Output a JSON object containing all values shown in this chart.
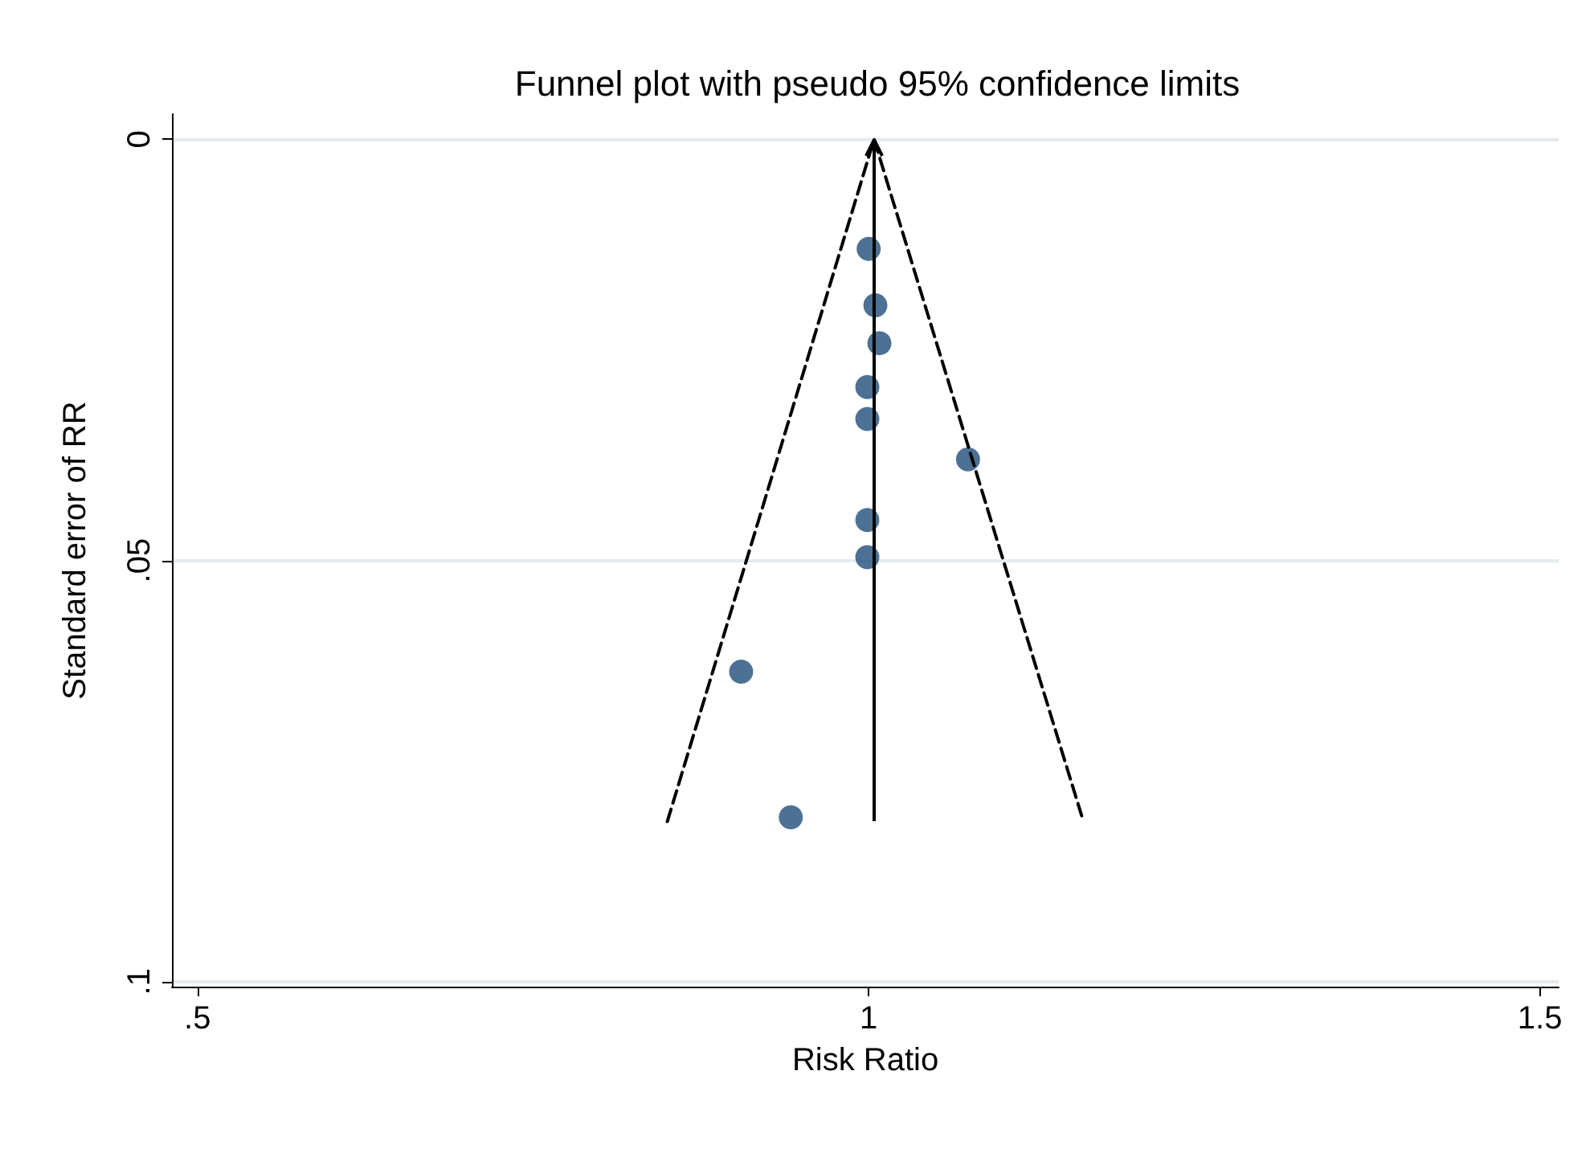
{
  "chart_data": {
    "type": "scatter",
    "title": "Funnel plot with pseudo 95% confidence limits",
    "xlabel": "Risk Ratio",
    "ylabel": "Standard error of RR",
    "xlim": [
      0.481,
      1.514
    ],
    "xticks": [
      {
        "value": 0.5,
        "label": ".5"
      },
      1,
      {
        "value": 1.5,
        "label": "1.5"
      }
    ],
    "ylim": [
      0.1006,
      -0.003
    ],
    "yticks": [
      0,
      {
        "value": 0.05,
        "label": ".05"
      },
      {
        "value": 0.1,
        "label": ".1"
      }
    ],
    "grid": "y",
    "series": [
      {
        "type": "line",
        "color": "#000000",
        "line_style": "dashed",
        "marker": "none",
        "x": [
          0.85,
          1.004,
          1.16
        ],
        "values": [
          0.081,
          0,
          0.081
        ]
      },
      {
        "color": "#1f4e79",
        "marker": "circle",
        "x": [
          1.0,
          1.005,
          1.008,
          0.999,
          0.999,
          1.074,
          0.999,
          0.999,
          0.905,
          0.942
        ],
        "values": [
          0.013,
          0.0197,
          0.0242,
          0.0294,
          0.0332,
          0.038,
          0.0452,
          0.0496,
          0.0632,
          0.0805
        ]
      }
    ]
  }
}
